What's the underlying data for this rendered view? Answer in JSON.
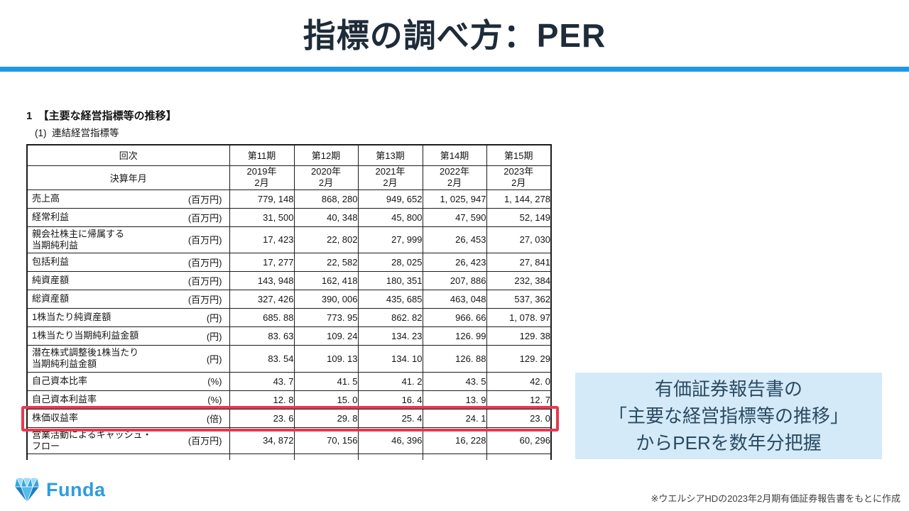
{
  "slide": {
    "title": "指標の調べ方：PER",
    "accent_color": "#2196e8",
    "callout": {
      "lines": [
        "有価証券報告書の",
        "「主要な経営指標等の推移」",
        "からPERを数年分把握"
      ],
      "bg_color": "#d4eaf8",
      "text_color": "#2a4a63"
    },
    "footnote": "※ウエルシアHDの2023年2月期有価証券報告書をもとに作成",
    "logo": {
      "text": "Funda",
      "brand_color": "#2b9edb",
      "icon": "gem-icon"
    }
  },
  "report": {
    "section_heading": "1  【主要な経営指標等の推移】",
    "subsection_heading": "(1)  連結経営指標等",
    "table": {
      "corner_label": "回次",
      "periods": [
        "第11期",
        "第12期",
        "第13期",
        "第14期",
        "第15期"
      ],
      "fiscal_row_label": "決算年月",
      "fiscal_dates": [
        "2019年\n2月",
        "2020年\n2月",
        "2021年\n2月",
        "2022年\n2月",
        "2023年\n2月"
      ],
      "highlight_color": "#e73950",
      "rows": [
        {
          "label": "売上高",
          "unit": "(百万円)",
          "values": [
            "779,148",
            "868,280",
            "949,652",
            "1,025,947",
            "1,144,278"
          ],
          "highlight": false
        },
        {
          "label": "経常利益",
          "unit": "(百万円)",
          "values": [
            "31,500",
            "40,348",
            "45,800",
            "47,590",
            "52,149"
          ],
          "highlight": false
        },
        {
          "label": "親会社株主に帰属する\n当期純利益",
          "unit": "(百万円)",
          "values": [
            "17,423",
            "22,802",
            "27,999",
            "26,453",
            "27,030"
          ],
          "highlight": false
        },
        {
          "label": "包括利益",
          "unit": "(百万円)",
          "values": [
            "17,277",
            "22,582",
            "28,025",
            "26,423",
            "27,841"
          ],
          "highlight": false
        },
        {
          "label": "純資産額",
          "unit": "(百万円)",
          "values": [
            "143,948",
            "162,418",
            "180,351",
            "207,886",
            "232,384"
          ],
          "highlight": false
        },
        {
          "label": "総資産額",
          "unit": "(百万円)",
          "values": [
            "327,426",
            "390,006",
            "435,685",
            "463,048",
            "537,362"
          ],
          "highlight": false
        },
        {
          "label": "1株当たり純資産額",
          "unit": "(円)",
          "values": [
            "685.88",
            "773.95",
            "862.82",
            "966.66",
            "1,078.97"
          ],
          "highlight": false
        },
        {
          "label": "1株当たり当期純利益金額",
          "unit": "(円)",
          "values": [
            "83.63",
            "109.24",
            "134.23",
            "126.99",
            "129.38"
          ],
          "highlight": false
        },
        {
          "label": "潜在株式調整後1株当たり\n当期純利益金額",
          "unit": "(円)",
          "values": [
            "83.54",
            "109.13",
            "134.10",
            "126.88",
            "129.29"
          ],
          "highlight": false
        },
        {
          "label": "自己資本比率",
          "unit": "(%)",
          "values": [
            "43.7",
            "41.5",
            "41.2",
            "43.5",
            "42.0"
          ],
          "highlight": false
        },
        {
          "label": "自己資本利益率",
          "unit": "(%)",
          "values": [
            "12.8",
            "15.0",
            "16.4",
            "13.9",
            "12.7"
          ],
          "highlight": false
        },
        {
          "label": "株価収益率",
          "unit": "(倍)",
          "values": [
            "23.6",
            "29.8",
            "25.4",
            "24.1",
            "23.0"
          ],
          "highlight": true
        },
        {
          "label": "営業活動によるキャッシュ・\nフロー",
          "unit": "(百万円)",
          "values": [
            "34,872",
            "70,156",
            "46,396",
            "16,228",
            "60,296"
          ],
          "highlight": false
        }
      ]
    }
  }
}
